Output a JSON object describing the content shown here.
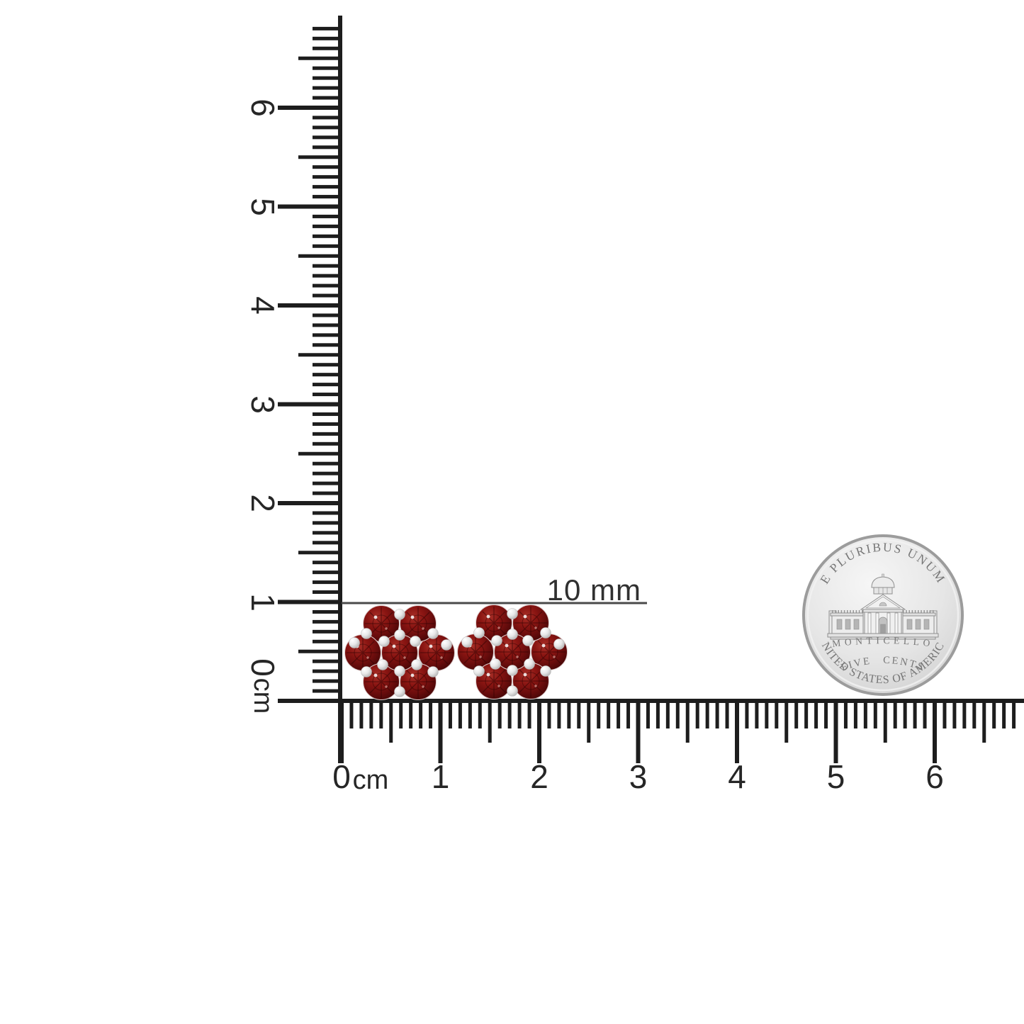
{
  "scale_annotation": {
    "label": "10 mm"
  },
  "rulers": {
    "horizontal": {
      "unit_label": "cm",
      "numbers": [
        "0",
        "1",
        "2",
        "3",
        "4",
        "5",
        "6"
      ]
    },
    "vertical": {
      "unit_label": "cm",
      "numbers": [
        "0",
        "1",
        "2",
        "3",
        "4",
        "5",
        "6"
      ]
    }
  },
  "coin": {
    "top_text": "E PLURIBUS UNUM",
    "building_label": "MONTICELLO",
    "denomination": "FIVE CENTS",
    "bottom_text": "UNITED STATES OF AMERICA"
  },
  "colors": {
    "ruler": "#1d1d1d",
    "annotation_line": "#4a4a4a",
    "stone_light": "#a93028",
    "stone_mid": "#8a1512",
    "stone_deep": "#670c0c",
    "stone_dark": "#3f0505",
    "metal_highlight": "#ffffff",
    "metal_mid": "#e8e8e8",
    "metal_shadow": "#b9b9b9",
    "coin_field_light": "#f6f6f6",
    "coin_field_dark": "#c4c4c4",
    "coin_text": "#767676"
  }
}
